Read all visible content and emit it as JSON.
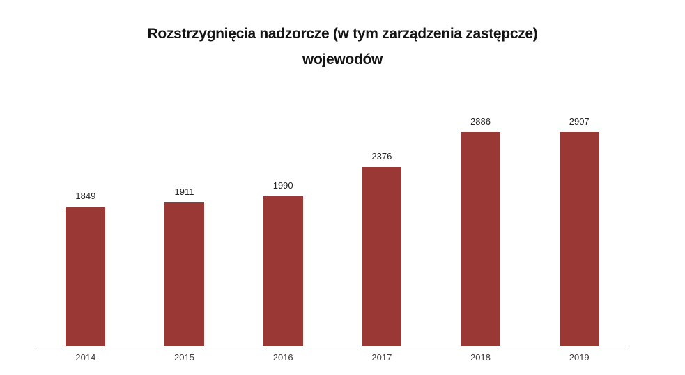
{
  "title": {
    "line1": "Rozstrzygnięcia nadzorcze (w tym zarządzenia zastępcze)",
    "line2": "wojewodów"
  },
  "chart_data": {
    "type": "bar",
    "title": "Rozstrzygnięcia nadzorcze (w tym zarządzenia zastępcze) wojewodów",
    "categories": [
      "2014",
      "2015",
      "2016",
      "2017",
      "2018",
      "2019"
    ],
    "values": [
      1849,
      1911,
      1990,
      2376,
      2886,
      2907
    ],
    "xlabel": "",
    "ylabel": "",
    "ylim": [
      0,
      3000
    ],
    "grid": false,
    "legend": false,
    "data_labels": true,
    "bar_color": "#993834",
    "axis_line_color": "#A6A6A6",
    "value_label_color": "#262626",
    "tick_label_color": "#404040",
    "title_color": "#141414",
    "background_color": "#FFFFFF"
  }
}
